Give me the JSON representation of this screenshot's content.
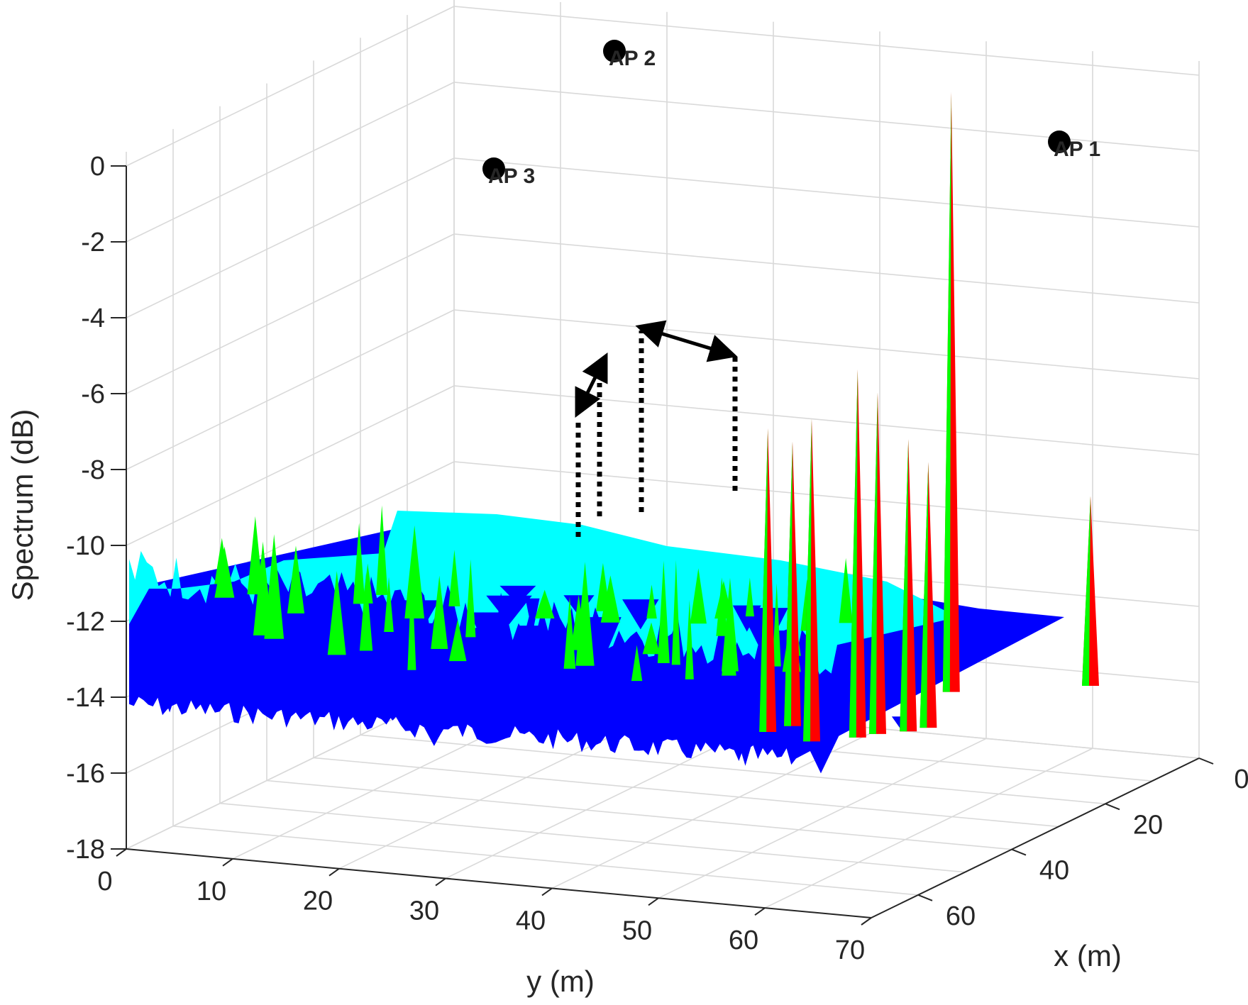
{
  "chart_data": {
    "type": "surface",
    "xlabel": "x (m)",
    "ylabel": "y (m)",
    "zlabel": "Spectrum (dB)",
    "x_ticks": [
      0,
      20,
      40,
      60
    ],
    "y_ticks": [
      0,
      10,
      20,
      30,
      40,
      50,
      60,
      70
    ],
    "z_ticks": [
      0,
      -2,
      -4,
      -6,
      -8,
      -10,
      -12,
      -14,
      -16,
      -18
    ],
    "xlim": [
      0,
      70
    ],
    "ylim": [
      0,
      70
    ],
    "zlim": [
      -18,
      0
    ],
    "grid": true,
    "colors": {
      "floor": "#0000ff",
      "mid": "#00ffff",
      "high": "#00ff00",
      "peak": "#ff0000"
    },
    "peaks": [
      {
        "x": 30,
        "y": 45,
        "z": -8.5
      },
      {
        "x": 33,
        "y": 44,
        "z": -8.0
      },
      {
        "x": 35,
        "y": 49,
        "z": -7.5
      },
      {
        "x": 32,
        "y": 52,
        "z": -6.3
      },
      {
        "x": 30,
        "y": 53,
        "z": -7.0
      },
      {
        "x": 28,
        "y": 55,
        "z": -8.3
      },
      {
        "x": 26,
        "y": 56,
        "z": -9.0
      },
      {
        "x": 12,
        "y": 52,
        "z": 1.0
      },
      {
        "x": 5,
        "y": 62,
        "z": -11.0
      }
    ],
    "access_points": [
      {
        "label": "AP 1",
        "x": 0,
        "y": 62,
        "z": 0
      },
      {
        "label": "AP 2",
        "x": 0,
        "y": 25,
        "z": 0
      },
      {
        "label": "AP 3",
        "x": 25,
        "y": 15,
        "z": 0
      }
    ]
  }
}
